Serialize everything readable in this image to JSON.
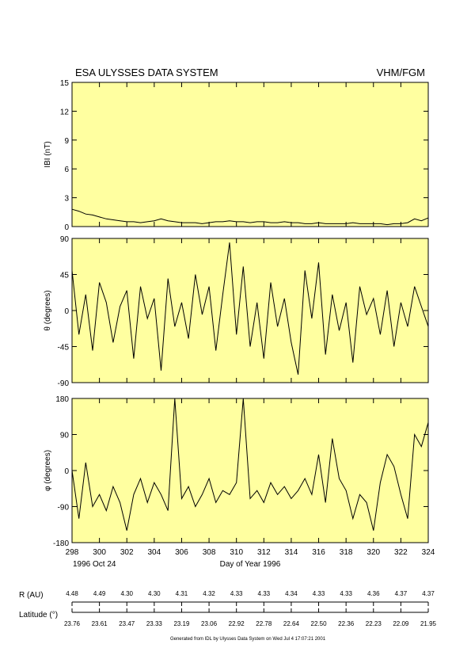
{
  "header": {
    "title": "ESA ULYSSES DATA SYSTEM",
    "instrument": "VHM/FGM"
  },
  "chart_data": [
    {
      "type": "line",
      "y_label": "IBI (nT)",
      "color": "#000000",
      "background": "#ffffa0",
      "x": [
        298,
        298.5,
        299,
        299.5,
        300,
        300.5,
        301,
        301.5,
        302,
        302.5,
        303,
        303.5,
        304,
        304.5,
        305,
        305.5,
        306,
        306.5,
        307,
        307.5,
        308,
        308.5,
        309,
        309.5,
        310,
        310.5,
        311,
        311.5,
        312,
        312.5,
        313,
        313.5,
        314,
        314.5,
        315,
        315.5,
        316,
        316.5,
        317,
        317.5,
        318,
        318.5,
        319,
        319.5,
        320,
        320.5,
        321,
        321.5,
        322,
        322.5,
        323,
        323.5,
        324
      ],
      "values": [
        1.8,
        1.6,
        1.3,
        1.2,
        1.0,
        0.8,
        0.7,
        0.6,
        0.5,
        0.5,
        0.4,
        0.5,
        0.6,
        0.8,
        0.6,
        0.5,
        0.4,
        0.4,
        0.4,
        0.3,
        0.4,
        0.5,
        0.5,
        0.6,
        0.5,
        0.5,
        0.4,
        0.5,
        0.5,
        0.4,
        0.4,
        0.5,
        0.4,
        0.4,
        0.3,
        0.3,
        0.4,
        0.3,
        0.3,
        0.3,
        0.3,
        0.4,
        0.3,
        0.3,
        0.3,
        0.3,
        0.2,
        0.3,
        0.3,
        0.4,
        0.8,
        0.6,
        0.9
      ],
      "xlim": [
        298,
        324
      ],
      "xticks": [
        298,
        300,
        302,
        304,
        306,
        308,
        310,
        312,
        314,
        316,
        318,
        320,
        322,
        324
      ],
      "ylim": [
        0,
        15
      ],
      "yticks": [
        0,
        3,
        6,
        9,
        12,
        15
      ]
    },
    {
      "type": "line",
      "y_label": "θ (degrees)",
      "color": "#000000",
      "background": "#ffffa0",
      "x": [
        298,
        298.5,
        299,
        299.5,
        300,
        300.5,
        301,
        301.5,
        302,
        302.5,
        303,
        303.5,
        304,
        304.5,
        305,
        305.5,
        306,
        306.5,
        307,
        307.5,
        308,
        308.5,
        309,
        309.5,
        310,
        310.5,
        311,
        311.5,
        312,
        312.5,
        313,
        313.5,
        314,
        314.5,
        315,
        315.5,
        316,
        316.5,
        317,
        317.5,
        318,
        318.5,
        319,
        319.5,
        320,
        320.5,
        321,
        321.5,
        322,
        322.5,
        323,
        323.5,
        324
      ],
      "values": [
        50,
        -30,
        20,
        -50,
        35,
        10,
        -40,
        5,
        25,
        -60,
        30,
        -10,
        15,
        -75,
        40,
        -20,
        10,
        -35,
        45,
        -5,
        30,
        -50,
        20,
        85,
        -30,
        55,
        -45,
        10,
        -60,
        35,
        -20,
        15,
        -40,
        -80,
        50,
        -10,
        60,
        -55,
        20,
        -25,
        10,
        -65,
        30,
        -5,
        15,
        -30,
        25,
        -45,
        10,
        -20,
        30,
        5,
        -20
      ],
      "xlim": [
        298,
        324
      ],
      "xticks": [
        298,
        300,
        302,
        304,
        306,
        308,
        310,
        312,
        314,
        316,
        318,
        320,
        322,
        324
      ],
      "ylim": [
        -90,
        90
      ],
      "yticks": [
        -90,
        -45,
        0,
        45,
        90
      ]
    },
    {
      "type": "line",
      "y_label": "φ (degrees)",
      "color": "#000000",
      "background": "#ffffa0",
      "x": [
        298,
        298.5,
        299,
        299.5,
        300,
        300.5,
        301,
        301.5,
        302,
        302.5,
        303,
        303.5,
        304,
        304.5,
        305,
        305.5,
        306,
        306.5,
        307,
        307.5,
        308,
        308.5,
        309,
        309.5,
        310,
        310.5,
        311,
        311.5,
        312,
        312.5,
        313,
        313.5,
        314,
        314.5,
        315,
        315.5,
        316,
        316.5,
        317,
        317.5,
        318,
        318.5,
        319,
        319.5,
        320,
        320.5,
        321,
        321.5,
        322,
        322.5,
        323,
        323.5,
        324
      ],
      "values": [
        0,
        -120,
        20,
        -90,
        -60,
        -100,
        -40,
        -80,
        -150,
        -60,
        -20,
        -80,
        -30,
        -60,
        -100,
        180,
        -70,
        -40,
        -90,
        -60,
        -20,
        -80,
        -50,
        -60,
        -30,
        180,
        -70,
        -50,
        -80,
        -30,
        -60,
        -40,
        -70,
        -50,
        -20,
        -60,
        40,
        -80,
        80,
        -20,
        -50,
        -120,
        -60,
        -80,
        -150,
        -30,
        40,
        10,
        -60,
        -120,
        90,
        60,
        120
      ],
      "xlim": [
        298,
        324
      ],
      "xticks": [
        298,
        300,
        302,
        304,
        306,
        308,
        310,
        312,
        314,
        316,
        318,
        320,
        322,
        324
      ],
      "ylim": [
        -180,
        180
      ],
      "yticks": [
        -180,
        -90,
        0,
        90,
        180
      ],
      "date_label": "1996 Oct 24",
      "x_label": "Day of Year 1996"
    }
  ],
  "ephemeris": {
    "r_label": "R (AU)",
    "r_values": [
      "4.48",
      "4.49",
      "4.30",
      "4.30",
      "4.31",
      "4.32",
      "4.33",
      "4.33",
      "4.34",
      "4.33",
      "4.33",
      "4.36",
      "4.37",
      "4.37"
    ],
    "lat_label": "Latitude (°)",
    "lat_values": [
      "23.76",
      "23.61",
      "23.47",
      "23.33",
      "23.19",
      "23.06",
      "22.92",
      "22.78",
      "22.64",
      "22.50",
      "22.36",
      "22.23",
      "22.09",
      "21.95"
    ]
  },
  "footer": "Generated from IDL by Ulysses Data System on Wed Jul  4 17:07:21 2001"
}
